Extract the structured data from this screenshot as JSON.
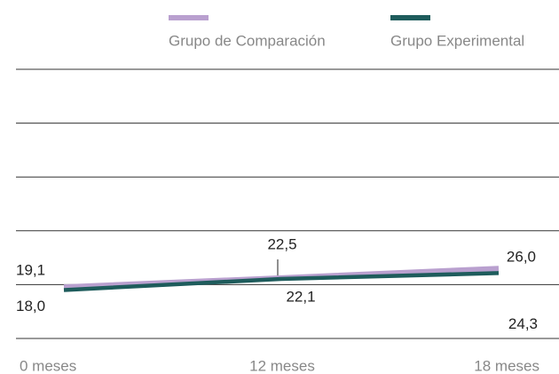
{
  "chart_data": {
    "type": "line",
    "categories": [
      "0 meses",
      "12 meses",
      "18 meses"
    ],
    "series": [
      {
        "name": "Grupo de Comparación",
        "color": "#b9a0cf",
        "values": [
          19.1,
          22.5,
          26.0
        ],
        "value_labels": [
          "19,1",
          "22,5",
          "26,0"
        ]
      },
      {
        "name": "Grupo Experimental",
        "color": "#1e5c5c",
        "values": [
          18.0,
          22.1,
          24.3
        ],
        "value_labels": [
          "18,0",
          "22,1",
          "24,3"
        ]
      }
    ],
    "ylim": [
      0,
      100
    ],
    "yticks": [
      0,
      20,
      40,
      60,
      80,
      100
    ],
    "grid": true
  }
}
